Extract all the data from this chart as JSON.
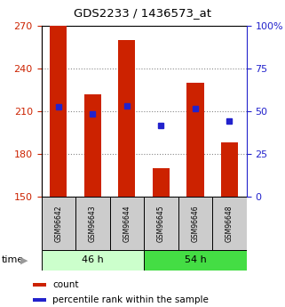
{
  "title": "GDS2233 / 1436573_at",
  "samples": [
    "GSM96642",
    "GSM96643",
    "GSM96644",
    "GSM96645",
    "GSM96646",
    "GSM96648"
  ],
  "bar_values": [
    270,
    222,
    260,
    170,
    230,
    188
  ],
  "percentile_values": [
    213,
    208,
    214,
    200,
    212,
    203
  ],
  "bar_baseline": 150,
  "ylim_left": [
    150,
    270
  ],
  "ylim_right": [
    0,
    100
  ],
  "yticks_left": [
    150,
    180,
    210,
    240,
    270
  ],
  "yticks_right": [
    0,
    25,
    50,
    75,
    100
  ],
  "bar_color": "#cc2200",
  "percentile_color": "#2222cc",
  "group1_label": "46 h",
  "group2_label": "54 h",
  "group1_indices": [
    0,
    1,
    2
  ],
  "group2_indices": [
    3,
    4,
    5
  ],
  "group1_bg": "#ccffcc",
  "group2_bg": "#44dd44",
  "sample_bg": "#cccccc",
  "legend_count_label": "count",
  "legend_pct_label": "percentile rank within the sample",
  "time_label": "time",
  "bar_width": 0.5,
  "grid_color": "#888888",
  "fig_width": 3.21,
  "fig_height": 3.45,
  "dpi": 100
}
